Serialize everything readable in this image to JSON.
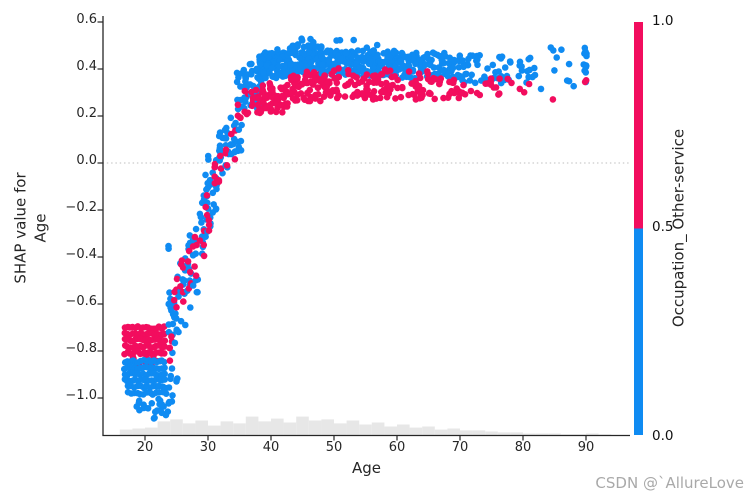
{
  "watermark": "CSDN @`AllureLove",
  "colors": {
    "high": "#f20d5e",
    "low": "#0f8bf2",
    "histogram": "#e7e7e7",
    "axis": "#262626",
    "zero_line": "#c9c9c9",
    "watermark": "#a9a9a9",
    "background": "#ffffff"
  },
  "chart_data": {
    "type": "scatter",
    "title": "",
    "xlabel": "Age",
    "ylabel": "SHAP value for Age",
    "ylabel_lines": [
      "SHAP value for",
      "Age"
    ],
    "x_ticks": [
      20,
      30,
      40,
      50,
      60,
      70,
      80,
      90
    ],
    "x_tick_labels": [
      "20",
      "30",
      "40",
      "50",
      "60",
      "70",
      "80",
      "90"
    ],
    "y_ticks": [
      0.6,
      0.4,
      0.2,
      0.0,
      -0.2,
      -0.4,
      -0.6,
      -0.8,
      -1.0
    ],
    "y_tick_labels": [
      "0.6",
      "0.4",
      "0.2",
      "0.0",
      "−0.2",
      "−0.4",
      "−0.6",
      "−0.8",
      "−1.0"
    ],
    "xlim": [
      13.3,
      97
    ],
    "ylim": [
      -1.16,
      0.63
    ],
    "grid": false,
    "zero_reference_line": 0.0,
    "colorbar": {
      "label": "Occupation_ Other-service",
      "tick_labels": [
        "1.0",
        "0.5",
        "0.0"
      ],
      "high_value": 1.0,
      "mid_value": 0.5,
      "low_value": 0.0,
      "high_color": "#f20d5e",
      "low_color": "#0f8bf2"
    },
    "series": [
      {
        "name": "Occupation_ Other-service = 1",
        "color_key": "high",
        "trend": "SHAP -0.70 to -0.83 at ages 17-23, rises steeply ages 24-37, plateau 0.27-0.38 from age 40 to 90"
      },
      {
        "name": "Occupation_ Other-service = 0",
        "color_key": "low",
        "trend": "SHAP -0.84 to -1.08 at ages 17-23, rises steeply ages 24-37, plateau 0.36-0.50 from age 40 to 90"
      }
    ],
    "point_clusters": [
      {
        "ages": [
          16.8,
          23.2
        ],
        "rows": [
          -0.7,
          -0.727,
          -0.754,
          -0.781,
          -0.808
        ],
        "step": 0.42,
        "f": 1
      },
      {
        "ages": [
          17.2,
          23.0
        ],
        "shap": [
          -0.82,
          -0.862
        ],
        "n": 12,
        "f": 1
      },
      {
        "ages": [
          16.8,
          23.4
        ],
        "rows": [
          -0.845,
          -0.872,
          -0.899,
          -0.926
        ],
        "step": 0.42,
        "f": 0
      },
      {
        "ages": [
          17.3,
          23.6
        ],
        "rows": [
          -0.953,
          -0.98
        ],
        "step": 0.5,
        "f": 0
      },
      {
        "ages": [
          18.5,
          23.8
        ],
        "shap": [
          -1.0,
          -1.055
        ],
        "n": 16,
        "f": 0
      },
      {
        "ages": [
          21.0,
          24.0
        ],
        "shap": [
          -1.05,
          -1.09
        ],
        "n": 7,
        "f": 0
      },
      {
        "ages": [
          23.6,
          24.5
        ],
        "shap": [
          -0.35,
          -1.05
        ],
        "n": 20,
        "f": 0
      },
      {
        "ages": [
          23.5,
          24.4
        ],
        "shap": [
          -0.6,
          -0.85
        ],
        "n": 5,
        "f": 1
      },
      {
        "ages": [
          24.6,
          25.4
        ],
        "shap": [
          -0.45,
          -0.95
        ],
        "n": 14,
        "f": 0
      },
      {
        "ages": [
          24.6,
          25.4
        ],
        "shap": [
          -0.48,
          -0.72
        ],
        "n": 5,
        "f": 1
      },
      {
        "ages": [
          25.6,
          26.4
        ],
        "shap": [
          -0.4,
          -0.7
        ],
        "n": 12,
        "f": 0
      },
      {
        "ages": [
          25.5,
          26.3
        ],
        "shap": [
          -0.4,
          -0.6
        ],
        "n": 6,
        "f": 1
      },
      {
        "ages": [
          26.6,
          27.4
        ],
        "shap": [
          -0.3,
          -0.62
        ],
        "n": 11,
        "f": 0
      },
      {
        "ages": [
          26.5,
          27.3
        ],
        "shap": [
          -0.33,
          -0.55
        ],
        "n": 5,
        "f": 1
      },
      {
        "ages": [
          27.6,
          28.4
        ],
        "shap": [
          -0.25,
          -0.55
        ],
        "n": 10,
        "f": 0
      },
      {
        "ages": [
          27.6,
          28.4
        ],
        "shap": [
          -0.28,
          -0.48
        ],
        "n": 5,
        "f": 1
      },
      {
        "ages": [
          28.6,
          29.4
        ],
        "shap": [
          -0.12,
          -0.45
        ],
        "n": 12,
        "f": 0
      },
      {
        "ages": [
          28.6,
          29.4
        ],
        "shap": [
          -0.18,
          -0.4
        ],
        "n": 4,
        "f": 1
      },
      {
        "ages": [
          29.6,
          30.4
        ],
        "shap": [
          0.08,
          -0.37
        ],
        "n": 20,
        "f": 0
      },
      {
        "ages": [
          29.6,
          30.4
        ],
        "shap": [
          -0.02,
          -0.33
        ],
        "n": 6,
        "f": 1
      },
      {
        "ages": [
          30.6,
          31.4
        ],
        "shap": [
          0.05,
          -0.22
        ],
        "n": 12,
        "f": 0
      },
      {
        "ages": [
          30.7,
          31.4
        ],
        "shap": [
          0.0,
          -0.18
        ],
        "n": 4,
        "f": 1
      },
      {
        "ages": [
          31.6,
          32.4
        ],
        "shap": [
          0.13,
          -0.06
        ],
        "n": 12,
        "f": 0
      },
      {
        "ages": [
          31.7,
          32.4
        ],
        "shap": [
          0.07,
          -0.1
        ],
        "n": 4,
        "f": 1
      },
      {
        "ages": [
          32.6,
          33.4
        ],
        "shap": [
          0.15,
          -0.03
        ],
        "n": 10,
        "f": 0
      },
      {
        "ages": [
          32.7,
          33.4
        ],
        "shap": [
          0.06,
          -0.06
        ],
        "n": 3,
        "f": 1
      },
      {
        "ages": [
          33.6,
          34.4
        ],
        "shap": [
          0.2,
          0.0
        ],
        "n": 10,
        "f": 0
      },
      {
        "ages": [
          33.7,
          34.4
        ],
        "shap": [
          0.15,
          -0.02
        ],
        "n": 3,
        "f": 1
      },
      {
        "ages": [
          34.6,
          35.4
        ],
        "shap": [
          0.4,
          0.04
        ],
        "n": 16,
        "f": 0
      },
      {
        "ages": [
          34.7,
          35.4
        ],
        "shap": [
          0.27,
          0.08
        ],
        "n": 4,
        "f": 1
      },
      {
        "ages": [
          35.6,
          36.4
        ],
        "shap": [
          0.41,
          0.18
        ],
        "n": 13,
        "f": 0
      },
      {
        "ages": [
          35.7,
          36.4
        ],
        "shap": [
          0.31,
          0.14
        ],
        "n": 5,
        "f": 1
      },
      {
        "ages": [
          36.6,
          37.4
        ],
        "shap": [
          0.43,
          0.24
        ],
        "n": 13,
        "f": 0
      },
      {
        "ages": [
          36.7,
          37.4
        ],
        "shap": [
          0.33,
          0.2
        ],
        "n": 6,
        "f": 1
      },
      {
        "ages": [
          37.4,
          38.6
        ],
        "shap": [
          0.2,
          0.36
        ],
        "n": 8,
        "f": 0
      },
      {
        "ages": [
          37.5,
          43.0
        ],
        "shap": [
          0.36,
          0.47
        ],
        "n": 120,
        "f": 0
      },
      {
        "ages": [
          37.5,
          43.0
        ],
        "shap": [
          0.21,
          0.34
        ],
        "n": 60,
        "f": 1
      },
      {
        "ages": [
          43.0,
          48.0
        ],
        "shap": [
          0.38,
          0.5
        ],
        "n": 110,
        "f": 0
      },
      {
        "ages": [
          43.0,
          48.0
        ],
        "shap": [
          0.26,
          0.38
        ],
        "n": 55,
        "f": 1
      },
      {
        "ages": [
          48.0,
          60.0
        ],
        "shap": [
          0.37,
          0.48
        ],
        "n": 190,
        "f": 0
      },
      {
        "ages": [
          48.0,
          60.0
        ],
        "shap": [
          0.27,
          0.38
        ],
        "n": 90,
        "f": 1
      },
      {
        "ages": [
          60.0,
          70.0
        ],
        "shap": [
          0.36,
          0.47
        ],
        "n": 110,
        "f": 0
      },
      {
        "ages": [
          60.0,
          70.0
        ],
        "shap": [
          0.27,
          0.37
        ],
        "n": 50,
        "f": 1
      },
      {
        "ages": [
          70.0,
          78.0
        ],
        "shap": [
          0.34,
          0.46
        ],
        "n": 45,
        "f": 0
      },
      {
        "ages": [
          70.0,
          78.0
        ],
        "shap": [
          0.28,
          0.36
        ],
        "n": 18,
        "f": 1
      },
      {
        "ages": [
          78.0,
          82.0
        ],
        "shap": [
          0.33,
          0.45
        ],
        "n": 14,
        "f": 0
      },
      {
        "ages": [
          78.0,
          82.0
        ],
        "shap": [
          0.3,
          0.36
        ],
        "n": 4,
        "f": 1
      },
      {
        "ages": [
          41.0,
          57.0
        ],
        "shap": [
          0.48,
          0.53
        ],
        "n": 12,
        "f": 0
      },
      {
        "ages": [
          44.0,
          68.0
        ],
        "shap": [
          0.38,
          0.41
        ],
        "n": 12,
        "f": 1
      },
      {
        "ages": [
          82.0,
          88.5
        ],
        "shap": [
          0.3,
          0.5
        ],
        "n": 10,
        "f": 0
      },
      {
        "ages": [
          83.0,
          85.0
        ],
        "shap": [
          0.27,
          0.29
        ],
        "n": 1,
        "f": 1
      },
      {
        "ages": [
          89.6,
          90.2
        ],
        "shap": [
          0.33,
          0.5
        ],
        "n": 14,
        "f": 0
      },
      {
        "ages": [
          89.7,
          90.1
        ],
        "shap": [
          0.34,
          0.36
        ],
        "n": 2,
        "f": 1
      }
    ],
    "histogram": {
      "start_age": 16,
      "bin_width_years": 2,
      "heights_rel": [
        0.27,
        0.32,
        0.36,
        0.64,
        0.73,
        0.55,
        0.68,
        0.45,
        0.64,
        0.55,
        0.86,
        0.64,
        0.77,
        0.59,
        0.86,
        0.68,
        0.73,
        0.55,
        0.68,
        0.5,
        0.59,
        0.41,
        0.5,
        0.36,
        0.41,
        0.27,
        0.32,
        0.23,
        0.23,
        0.18,
        0.14,
        0.14,
        0.09,
        0.09,
        0.09,
        0.05,
        0.05,
        0.09,
        0.05
      ]
    }
  }
}
